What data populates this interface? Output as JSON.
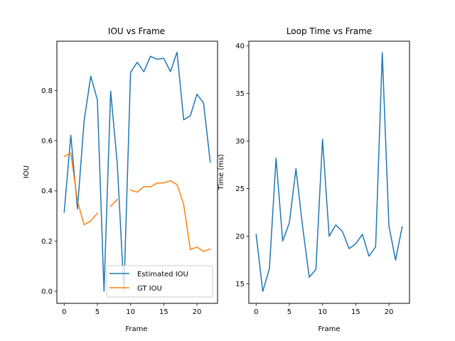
{
  "chart_data": [
    {
      "type": "line",
      "title": "IOU vs Frame",
      "xlabel": "Frame",
      "ylabel": "IOU",
      "xlim": [
        -1.1,
        23.1
      ],
      "ylim": [
        -0.048,
        0.996
      ],
      "xticks": [
        0,
        5,
        10,
        15,
        20
      ],
      "yticks": [
        0.0,
        0.2,
        0.4,
        0.6,
        0.8
      ],
      "ytick_labels": [
        "0.0",
        "0.2",
        "0.4",
        "0.6",
        "0.8"
      ],
      "grid": false,
      "legend_position": "lower right",
      "series": [
        {
          "name": "Estimated IOU",
          "color": "#1f77b4",
          "x": [
            0,
            1,
            2,
            3,
            4,
            5,
            6,
            7,
            8,
            9,
            10,
            11,
            12,
            13,
            14,
            15,
            16,
            17,
            18,
            19,
            20,
            21,
            22
          ],
          "y": [
            0.315,
            0.622,
            0.328,
            0.678,
            0.857,
            0.762,
            0.0,
            0.797,
            0.508,
            0.0,
            0.872,
            0.912,
            0.874,
            0.936,
            0.924,
            0.928,
            0.875,
            0.952,
            0.683,
            0.699,
            0.785,
            0.749,
            0.514
          ]
        },
        {
          "name": "GT IOU",
          "color": "#ff7f0e",
          "x": [
            0,
            1,
            2,
            3,
            4,
            5,
            6,
            7,
            8,
            9,
            10,
            11,
            12,
            13,
            14,
            15,
            16,
            17,
            18,
            19,
            20,
            21,
            22
          ],
          "y": [
            0.537,
            0.551,
            0.359,
            0.265,
            0.28,
            0.311,
            null,
            0.339,
            0.366,
            null,
            0.403,
            0.395,
            0.417,
            0.416,
            0.431,
            0.432,
            0.44,
            0.425,
            0.346,
            0.166,
            0.176,
            0.159,
            0.168
          ]
        }
      ]
    },
    {
      "type": "line",
      "title": "Loop Time vs Frame",
      "xlabel": "Frame",
      "ylabel": "Time (ms)",
      "xlim": [
        -1.1,
        23.1
      ],
      "ylim": [
        12.95,
        40.5
      ],
      "xticks": [
        0,
        5,
        10,
        15,
        20
      ],
      "yticks": [
        15,
        20,
        25,
        30,
        35,
        40
      ],
      "ytick_labels": [
        "15",
        "20",
        "25",
        "30",
        "35",
        "40"
      ],
      "grid": false,
      "series": [
        {
          "color": "#1f77b4",
          "x": [
            0,
            1,
            2,
            3,
            4,
            5,
            6,
            7,
            8,
            9,
            10,
            11,
            12,
            13,
            14,
            15,
            16,
            17,
            18,
            19,
            20,
            21,
            22
          ],
          "y": [
            20.2,
            14.2,
            16.6,
            28.2,
            19.5,
            21.4,
            27.1,
            21.0,
            15.7,
            16.5,
            30.2,
            20.0,
            21.2,
            20.5,
            18.7,
            19.2,
            20.2,
            17.9,
            18.9,
            39.3,
            21.1,
            17.5,
            21.0
          ]
        }
      ]
    }
  ]
}
